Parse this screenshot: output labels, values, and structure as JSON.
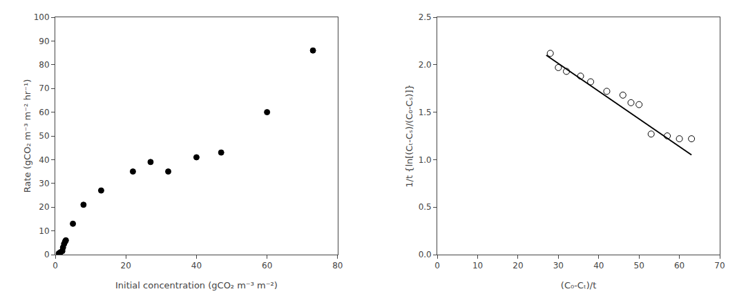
{
  "chart_data": [
    {
      "type": "scatter",
      "x_label": "Initial concentration (gCO₂ m⁻³ m⁻²)",
      "y_label": "Rate (gCO₂ m⁻³ m⁻² hr⁻¹)",
      "x": [
        1.0,
        1.5,
        2.0,
        2.2,
        2.5,
        2.8,
        3.0,
        5.0,
        8.0,
        13.0,
        22.0,
        27.0,
        32.0,
        40.0,
        47.0,
        60.0,
        73.0
      ],
      "values": [
        0.5,
        1.0,
        1.5,
        3.0,
        4.5,
        5.5,
        6.0,
        13.0,
        21.0,
        27.0,
        35.0,
        39.0,
        35.0,
        41.0,
        43.0,
        60.0,
        86.0
      ],
      "color": "#000000",
      "marker": "circle",
      "xlim": [
        0,
        80
      ],
      "ylim": [
        0,
        100
      ],
      "xticks": [
        0,
        20,
        40,
        60,
        80
      ],
      "yticks": [
        0,
        10,
        20,
        30,
        40,
        50,
        60,
        70,
        80,
        90,
        100
      ],
      "grid": false
    },
    {
      "type": "scatter",
      "x_label": "(C₀-Cₜ)/t",
      "y_label": "1/t {ln[(Cₜ-Cₛ)/(C₀-Cₛ)]}",
      "series": [
        {
          "type": "scatter",
          "marker": "open circle",
          "color": "#000000",
          "x": [
            28.0,
            30.0,
            32.0,
            35.5,
            38.0,
            42.0,
            46.0,
            48.0,
            50.0,
            53.0,
            57.0,
            60.0,
            63.0
          ],
          "values": [
            2.12,
            1.97,
            1.93,
            1.88,
            1.82,
            1.72,
            1.68,
            1.6,
            1.58,
            1.27,
            1.25,
            1.22,
            1.22
          ]
        },
        {
          "type": "line",
          "line_style": "solid",
          "color": "#000000",
          "x": [
            27.0,
            63.0
          ],
          "values": [
            2.1,
            1.05
          ]
        }
      ],
      "xlim": [
        0,
        70
      ],
      "ylim": [
        0.0,
        2.5
      ],
      "xticks": [
        0,
        10,
        20,
        30,
        40,
        50,
        60,
        70
      ],
      "yticks": [
        {
          "value": 0.0,
          "label": "0.0"
        },
        0.5,
        {
          "value": 1.0,
          "label": "1.0"
        },
        1.5,
        {
          "value": 2.0,
          "label": "2.0"
        },
        2.5
      ],
      "grid": false
    }
  ]
}
